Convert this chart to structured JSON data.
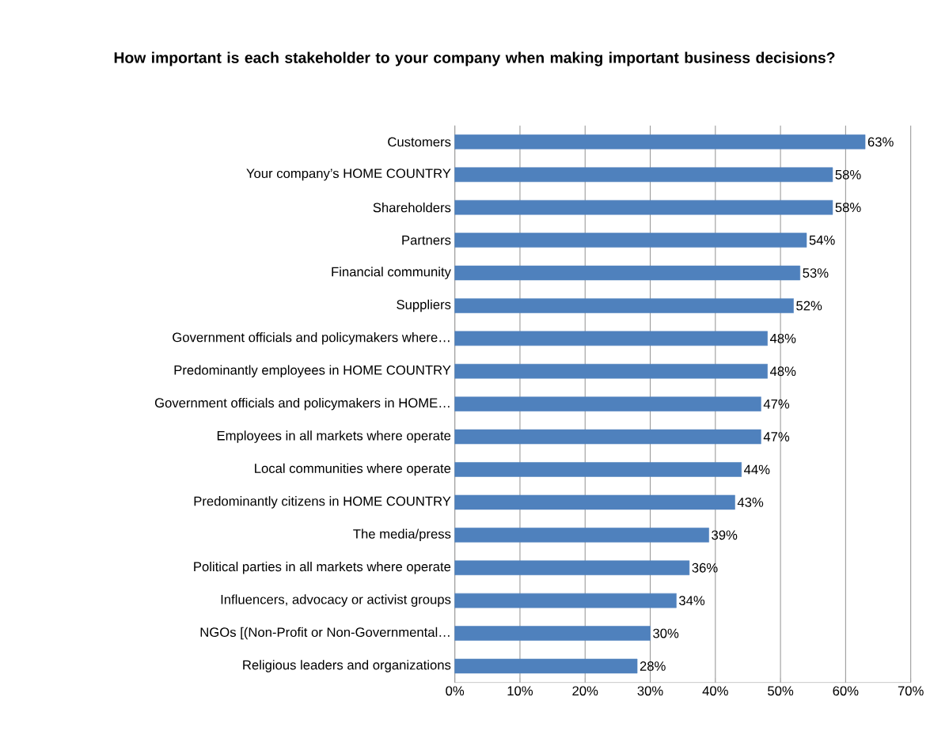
{
  "chart_data": {
    "type": "bar",
    "orientation": "horizontal",
    "title": "How important is each stakeholder to your company when making important business decisions?",
    "categories": [
      "Customers",
      "Your company’s HOME COUNTRY",
      "Shareholders",
      "Partners",
      "Financial community",
      "Suppliers",
      "Government officials and policymakers where…",
      "Predominantly employees in HOME COUNTRY",
      "Government officials and policymakers in HOME…",
      "Employees in all markets where operate",
      "Local communities where operate",
      "Predominantly citizens in HOME COUNTRY",
      "The media/press",
      "Political parties in all markets where operate",
      "Influencers, advocacy or activist groups",
      "NGOs [(Non-Profit or Non-Governmental…",
      "Religious leaders and organizations"
    ],
    "values": [
      63,
      58,
      58,
      54,
      53,
      52,
      48,
      48,
      47,
      47,
      44,
      43,
      39,
      36,
      34,
      30,
      28
    ],
    "value_labels": [
      "63%",
      "58%",
      "58%",
      "54%",
      "53%",
      "52%",
      "48%",
      "48%",
      "47%",
      "47%",
      "44%",
      "43%",
      "39%",
      "36%",
      "34%",
      "30%",
      "28%"
    ],
    "color": "#4f81bd",
    "xlim": [
      0,
      70
    ],
    "xticks": [
      {
        "value": 0,
        "label": "0%"
      },
      {
        "value": 10,
        "label": "10%"
      },
      {
        "value": 20,
        "label": "20%"
      },
      {
        "value": 30,
        "label": "30%"
      },
      {
        "value": 40,
        "label": "40%"
      },
      {
        "value": 50,
        "label": "50%"
      },
      {
        "value": 60,
        "label": "60%"
      },
      {
        "value": 70,
        "label": "70%"
      }
    ],
    "grid": "x"
  }
}
